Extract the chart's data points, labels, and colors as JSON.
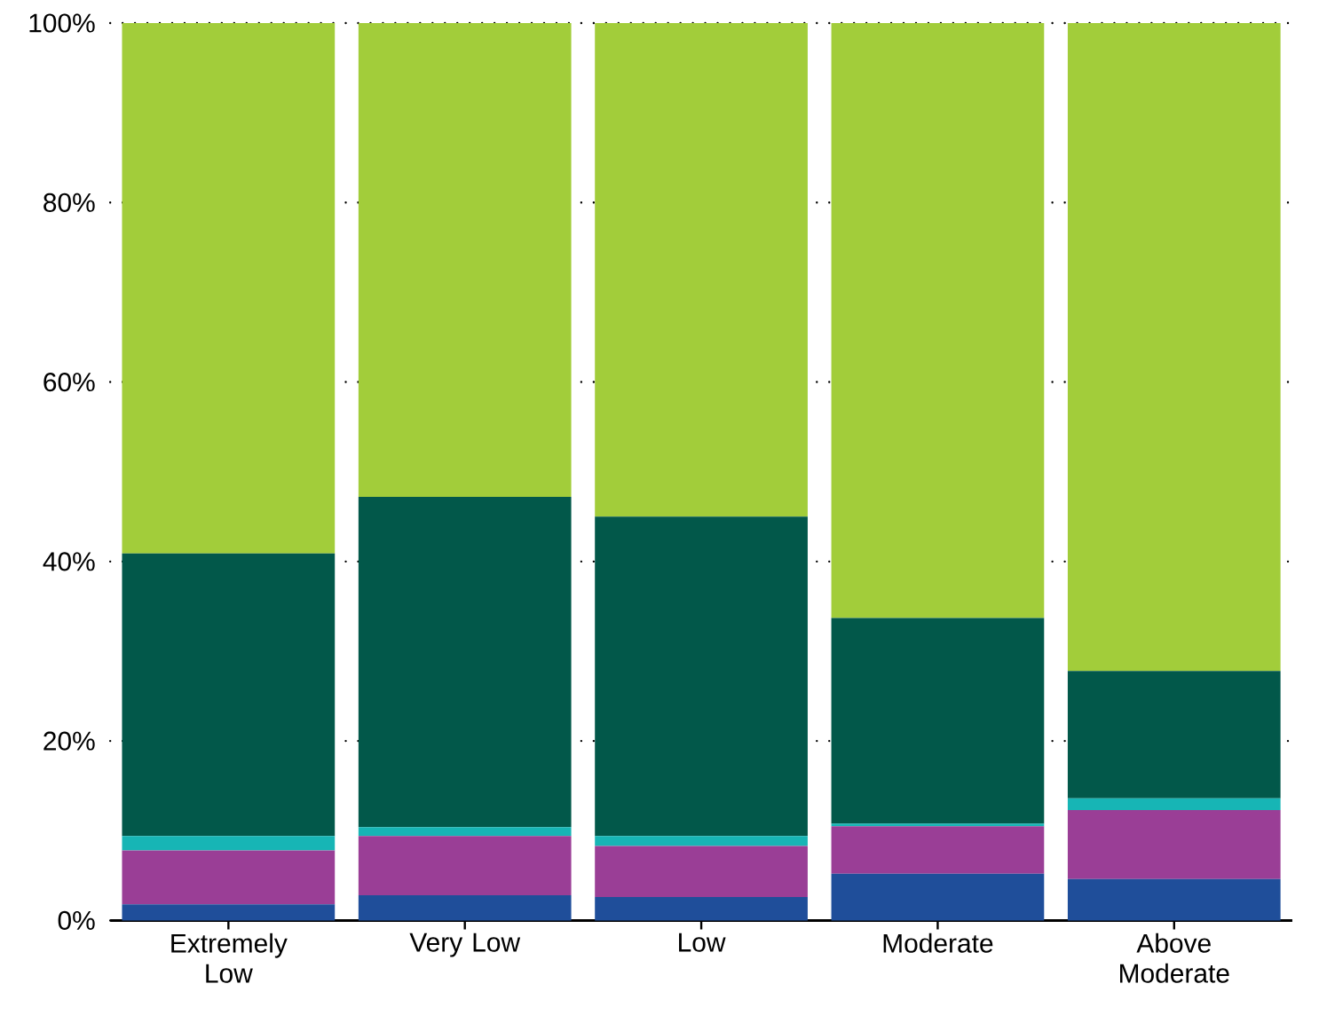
{
  "chart_data": {
    "type": "bar",
    "stacked": true,
    "categories": [
      "Extremely Low",
      "Very Low",
      "Low",
      "Moderate",
      "Above Moderate"
    ],
    "series": [
      {
        "color": "#1f4e9a",
        "values": [
          1.8,
          2.8,
          2.6,
          5.2,
          4.6
        ]
      },
      {
        "color": "#9a3e96",
        "values": [
          6.0,
          6.6,
          5.7,
          5.3,
          7.7
        ]
      },
      {
        "color": "#17b5b5",
        "values": [
          1.6,
          1.0,
          1.1,
          0.3,
          1.3
        ]
      },
      {
        "color": "#02584a",
        "values": [
          31.5,
          36.8,
          35.6,
          22.9,
          14.2
        ]
      },
      {
        "color": "#a2cd3a",
        "values": [
          59.1,
          52.8,
          55.0,
          66.3,
          72.2
        ]
      }
    ],
    "ylim": [
      0,
      100
    ],
    "yticks": [
      {
        "value": 0,
        "label": "0%"
      },
      {
        "value": 20,
        "label": "20%"
      },
      {
        "value": 40,
        "label": "40%"
      },
      {
        "value": 60,
        "label": "60%"
      },
      {
        "value": 80,
        "label": "80%"
      },
      {
        "value": 100,
        "label": "100%"
      }
    ],
    "grid": "y"
  }
}
